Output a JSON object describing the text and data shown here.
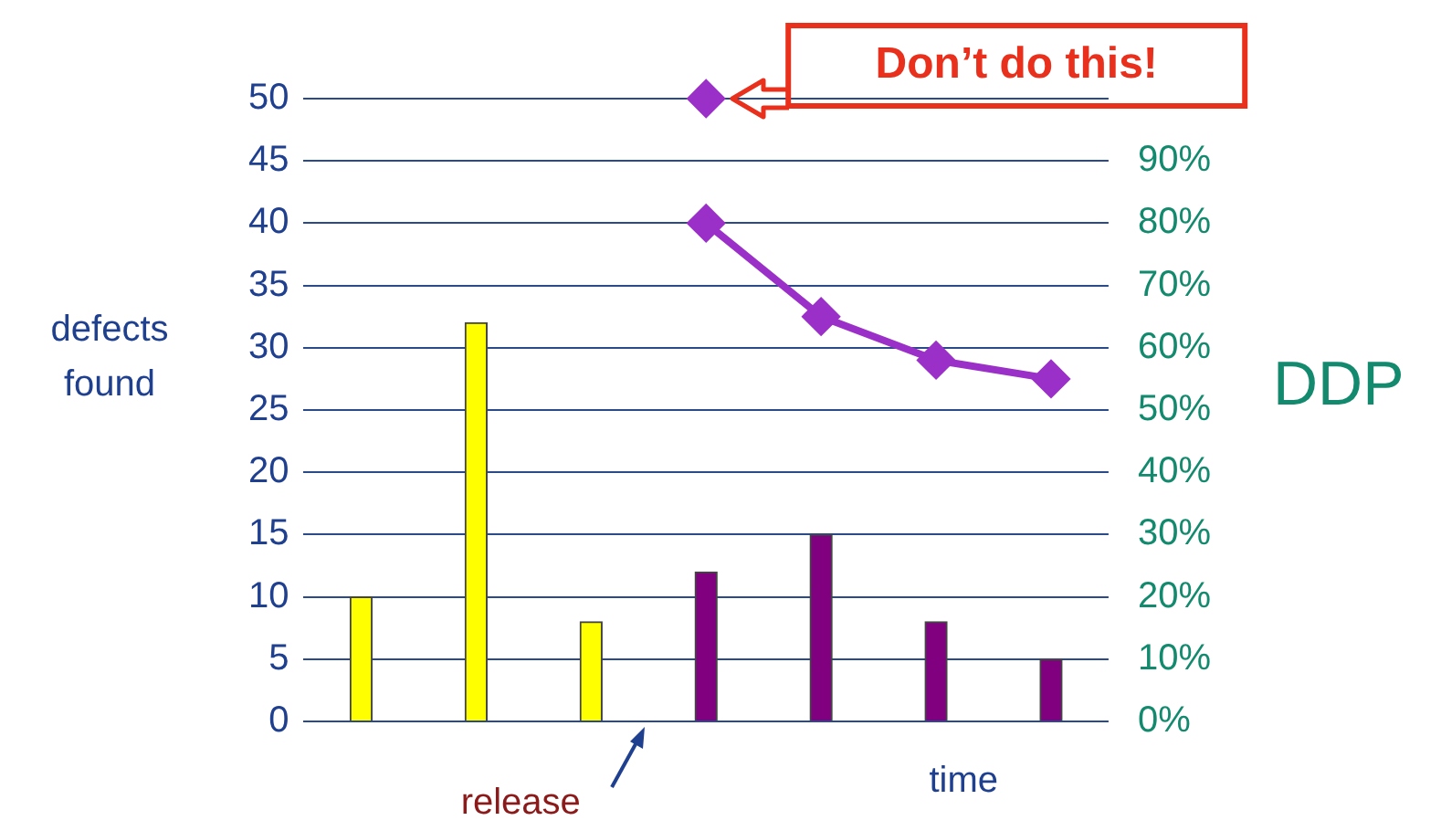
{
  "chart_data": {
    "type": "bar",
    "xlabel": "time",
    "ylabel": "defects found",
    "y2label": "DDP",
    "categories": [
      null,
      null,
      null,
      null,
      null,
      null,
      null
    ],
    "series": [
      {
        "values": [
          10,
          32,
          8,
          12,
          15,
          8,
          5
        ],
        "colors": [
          "#ffff00",
          "#ffff00",
          "#ffff00",
          "#800080",
          "#800080",
          "#800080",
          "#800080"
        ]
      },
      {
        "type": "line",
        "axis": "y2",
        "values": [
          null,
          null,
          null,
          80,
          65,
          58,
          55
        ],
        "color": "#9b30c8",
        "marker": "diamond"
      },
      {
        "type": "scatter",
        "axis": "y2",
        "values": [
          null,
          null,
          null,
          100,
          null,
          null,
          null
        ],
        "color": "#9b30c8",
        "marker": "diamond"
      }
    ],
    "ylim": [
      0,
      50
    ],
    "yticks": [
      0,
      5,
      10,
      15,
      20,
      25,
      30,
      35,
      40,
      45,
      50
    ],
    "y2lim": [
      0,
      100
    ],
    "y2ticks": [
      {
        "value": 0,
        "label": "0%"
      },
      {
        "value": 10,
        "label": "10%"
      },
      {
        "value": 20,
        "label": "20%"
      },
      {
        "value": 30,
        "label": "30%"
      },
      {
        "value": 40,
        "label": "40%"
      },
      {
        "value": 50,
        "label": "50%"
      },
      {
        "value": 60,
        "label": "60%"
      },
      {
        "value": 70,
        "label": "70%"
      },
      {
        "value": 80,
        "label": "80%"
      },
      {
        "value": 90,
        "label": "90%"
      }
    ],
    "grid": "y",
    "legend": false,
    "tick_labels": "y",
    "annotations": [
      "Don’t do this!",
      "release"
    ]
  }
}
